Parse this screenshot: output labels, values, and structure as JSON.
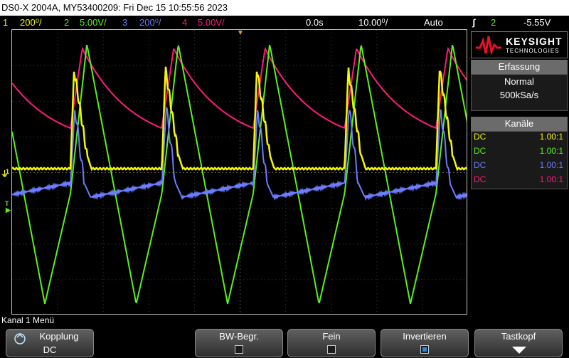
{
  "title": "DS0-X 2004A, MY53400209: Fri Dec 15 10:55:56 2023",
  "status": {
    "ch1_num": "1",
    "ch1_scale": "200⁰/",
    "ch2_num": "2",
    "ch2_scale": "5.00V/",
    "ch3_num": "3",
    "ch3_scale": "200⁰/",
    "ch4_num": "4",
    "ch4_scale": "5.00V/",
    "delay": "0.0s",
    "timebase": "10.00⁰/",
    "mode": "Auto",
    "trig_icon": "ʃ",
    "trig_source": "2",
    "trig_level": "-5.55V"
  },
  "logo": {
    "brand": "KEYSIGHT",
    "sub": "TECHNOLOGIES"
  },
  "acquisition": {
    "header": "Erfassung",
    "mode": "Normal",
    "rate": "500kSa/s"
  },
  "channels": {
    "header": "Kanäle",
    "rows": [
      {
        "coupling": "DC",
        "ratio": "1.00:1",
        "color": "#f5f50a"
      },
      {
        "coupling": "DC",
        "ratio": "1.00:1",
        "color": "#5cf018"
      },
      {
        "coupling": "DC",
        "ratio": "1.00:1",
        "color": "#6b7cff"
      },
      {
        "coupling": "DC",
        "ratio": "1.00:1",
        "color": "#ff1a7a"
      }
    ]
  },
  "menu_label": "Kanal 1 Menü",
  "softkeys": {
    "kopplung_label": "Kopplung",
    "kopplung_value": "DC",
    "bw_label": "BW-Begr.",
    "fein_label": "Fein",
    "invert_label": "Invertieren",
    "probe_label": "Tastkopf"
  },
  "colors": {
    "ch1": "#f5f50a",
    "ch2": "#5cf018",
    "ch3": "#6b7cff",
    "ch4": "#ff1a7a",
    "trigger": "#f39a1a"
  }
}
